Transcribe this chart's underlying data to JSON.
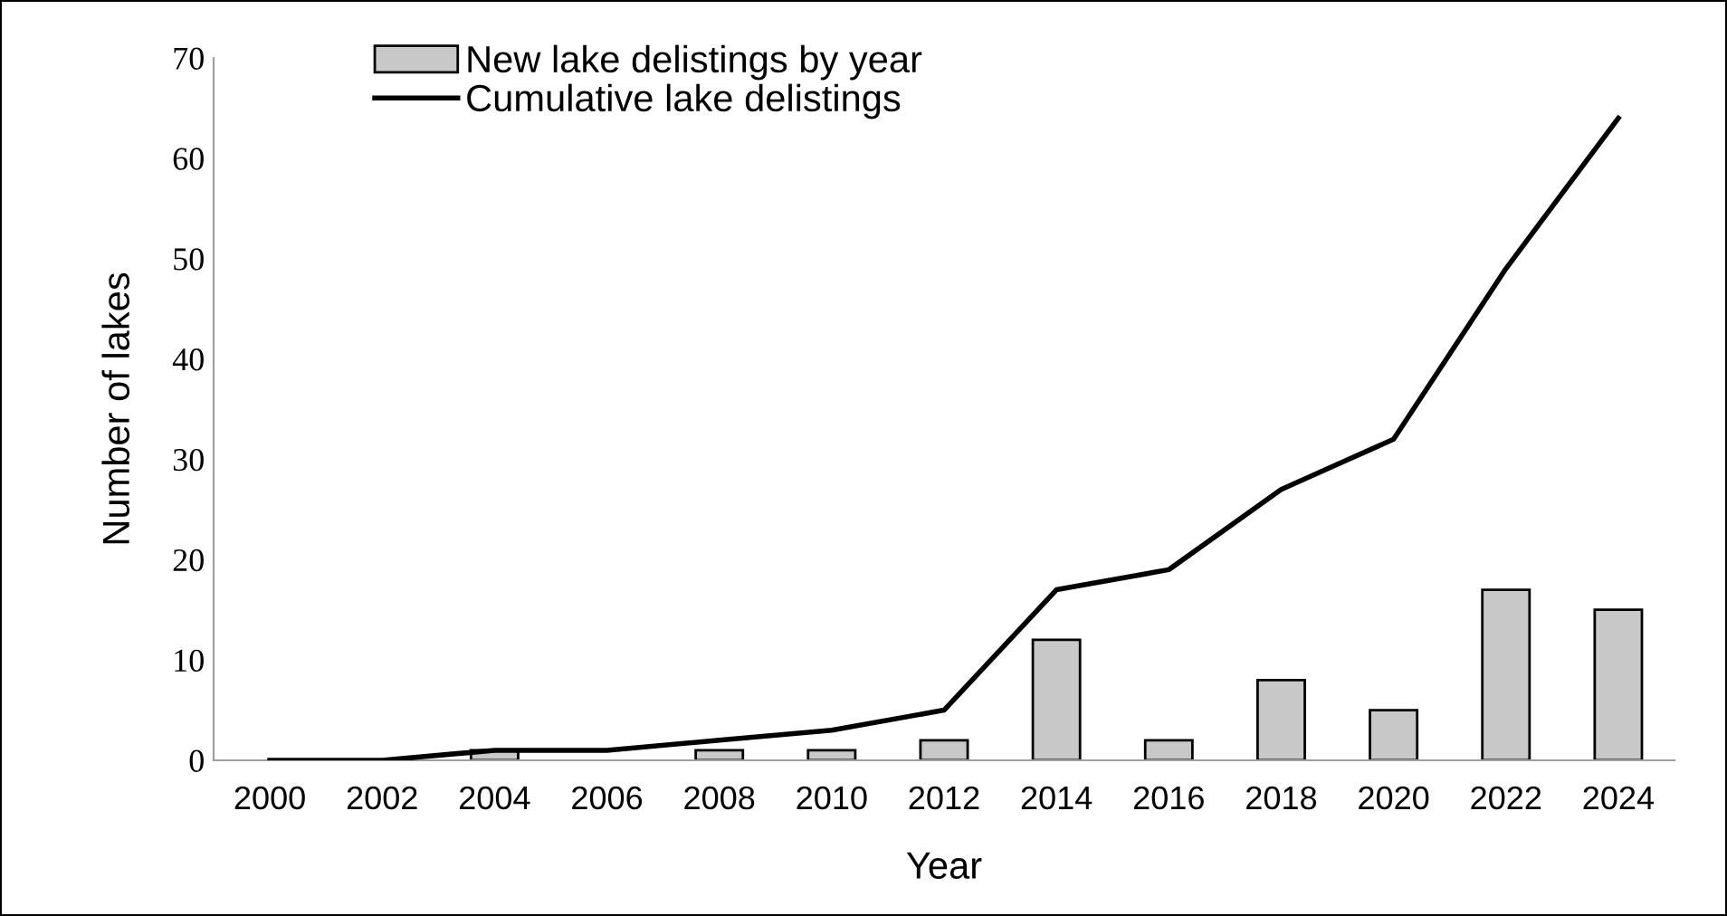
{
  "chart_data": {
    "type": "bar",
    "xlabel": "Year",
    "ylabel": "Number of lakes",
    "categories": [
      "2000",
      "2002",
      "2004",
      "2006",
      "2008",
      "2010",
      "2012",
      "2014",
      "2016",
      "2018",
      "2020",
      "2022",
      "2024"
    ],
    "series": [
      {
        "name": "New lake delistings by year",
        "color": "#c8c8c8",
        "values": [
          0,
          0,
          1,
          0,
          1,
          1,
          2,
          12,
          2,
          8,
          5,
          17,
          15
        ]
      },
      {
        "name": "Cumulative lake delistings",
        "type": "line",
        "color": "#000000",
        "values": [
          0,
          0,
          1,
          1,
          2,
          3,
          5,
          17,
          19,
          27,
          32,
          49,
          64
        ]
      }
    ],
    "ylim": [
      0,
      70
    ],
    "yticks": [
      0,
      10,
      20,
      30,
      40,
      50,
      60,
      70
    ],
    "grid": false,
    "legend": "top left",
    "marker": "none",
    "line_style": "solid"
  }
}
